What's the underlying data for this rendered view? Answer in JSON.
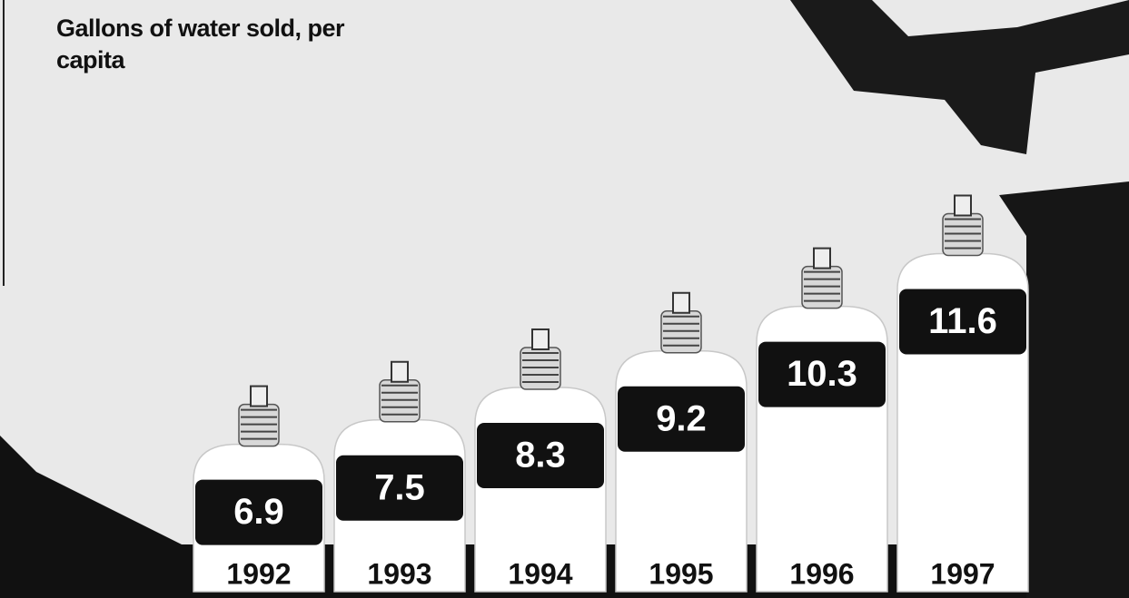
{
  "chart_data": {
    "type": "bottle-bar",
    "title": "Gallons of water sold, per capita",
    "categories": [
      "1992",
      "1993",
      "1994",
      "1995",
      "1996",
      "1997"
    ],
    "values": [
      6.9,
      7.5,
      8.3,
      9.2,
      10.3,
      11.6
    ],
    "color": "#ffffff"
  }
}
